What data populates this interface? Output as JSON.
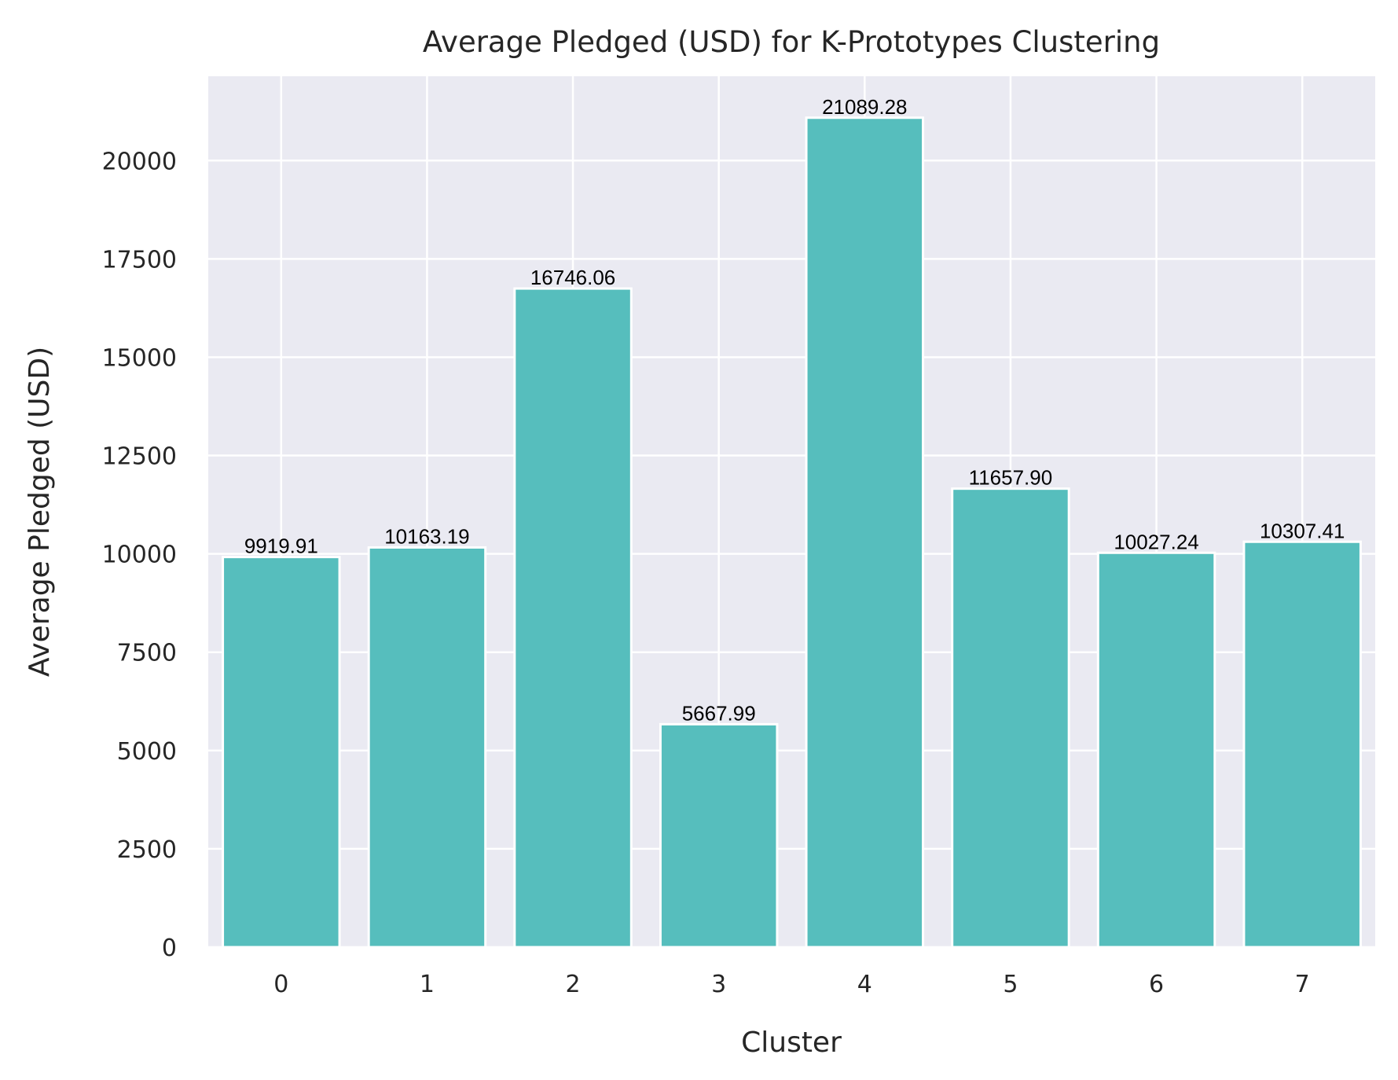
{
  "chart_data": {
    "type": "bar",
    "title": "Average Pledged (USD) for K-Prototypes Clustering",
    "xlabel": "Cluster",
    "ylabel": "Average Pledged (USD)",
    "categories": [
      "0",
      "1",
      "2",
      "3",
      "4",
      "5",
      "6",
      "7"
    ],
    "values": [
      9919.91,
      10163.19,
      16746.06,
      5667.99,
      21089.28,
      11657.9,
      10027.24,
      10307.41
    ],
    "data_labels": [
      "9919.91",
      "10163.19",
      "16746.06",
      "5667.99",
      "21089.28",
      "11657.90",
      "10027.24",
      "10307.41"
    ],
    "yticks": [
      0,
      2500,
      5000,
      7500,
      10000,
      12500,
      15000,
      17500,
      20000
    ],
    "ylim": [
      0,
      22143.74
    ],
    "grid": true,
    "legend": "none",
    "colors": {
      "bar": "#56BEBD",
      "bar_edge": "#FFFFFF",
      "plot_background": "#EAEAF2",
      "grid": "#FFFFFF",
      "text": "#262626"
    }
  }
}
